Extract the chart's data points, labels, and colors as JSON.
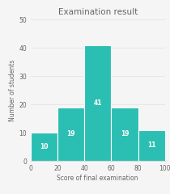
{
  "title": "Examination result",
  "xlabel": "Score of final examination",
  "ylabel": "Number of students",
  "bar_edges": [
    0,
    20,
    40,
    60,
    80,
    100
  ],
  "bar_heights": [
    10,
    19,
    41,
    19,
    11
  ],
  "bar_labels": [
    "10",
    "19",
    "41",
    "19",
    "11"
  ],
  "bar_color": "#2bbfb3",
  "background_color": "#f5f5f5",
  "ylim": [
    0,
    50
  ],
  "yticks": [
    0,
    10,
    20,
    30,
    40,
    50
  ],
  "xticks": [
    0,
    20,
    40,
    60,
    80,
    100
  ],
  "title_fontsize": 7.5,
  "label_fontsize": 5.5,
  "tick_fontsize": 5.5,
  "bar_label_fontsize": 5.5,
  "axis_color": "#cccccc",
  "text_color": "#666666",
  "grid_color": "#e0e0e0"
}
